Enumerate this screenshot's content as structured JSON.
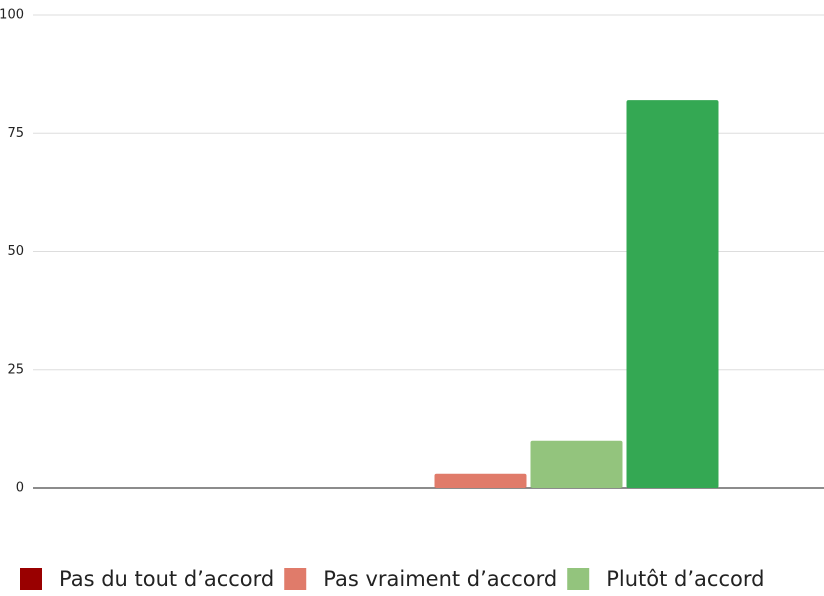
{
  "chart_data": {
    "type": "bar",
    "categories": [
      null
    ],
    "series": [
      {
        "name": "Pas du tout d’accord",
        "color": "#990000",
        "values": [
          0
        ]
      },
      {
        "name": "Pas vraiment d’accord",
        "color": "#e07b6a",
        "values": [
          3
        ]
      },
      {
        "name": "Plutôt d’accord",
        "color": "#93c47d",
        "values": [
          10
        ]
      },
      {
        "color": "#34a853",
        "values": [
          82
        ]
      }
    ],
    "ylim": [
      0,
      100
    ],
    "yticks": [
      0,
      25,
      50,
      75,
      100
    ],
    "grid": true,
    "legend": "bottom"
  }
}
